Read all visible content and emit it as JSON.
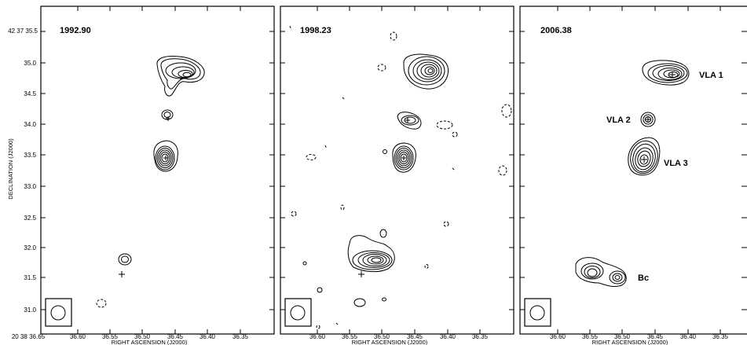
{
  "axes": {
    "ylabel": "DECLINATION (J2000)",
    "xlabel": "RIGHT ASCENSION (J2000)",
    "y_ticks": [
      "42 37 35.5",
      "35.0",
      "34.5",
      "34.0",
      "33.5",
      "33.0",
      "32.5",
      "32.0",
      "31.5",
      "31.0"
    ],
    "x_ticks_first": [
      "20 38 36.65",
      "36.60",
      "36.55",
      "36.50",
      "36.45",
      "36.40",
      "36.35"
    ],
    "x_ticks": [
      "36.60",
      "36.55",
      "36.50",
      "36.45",
      "36.40",
      "36.35"
    ]
  },
  "panels": [
    {
      "epoch": "1992.90"
    },
    {
      "epoch": "1998.23"
    },
    {
      "epoch": "2006.38",
      "labels": [
        "VLA 1",
        "VLA 2",
        "VLA 3",
        "Bc"
      ]
    }
  ]
}
